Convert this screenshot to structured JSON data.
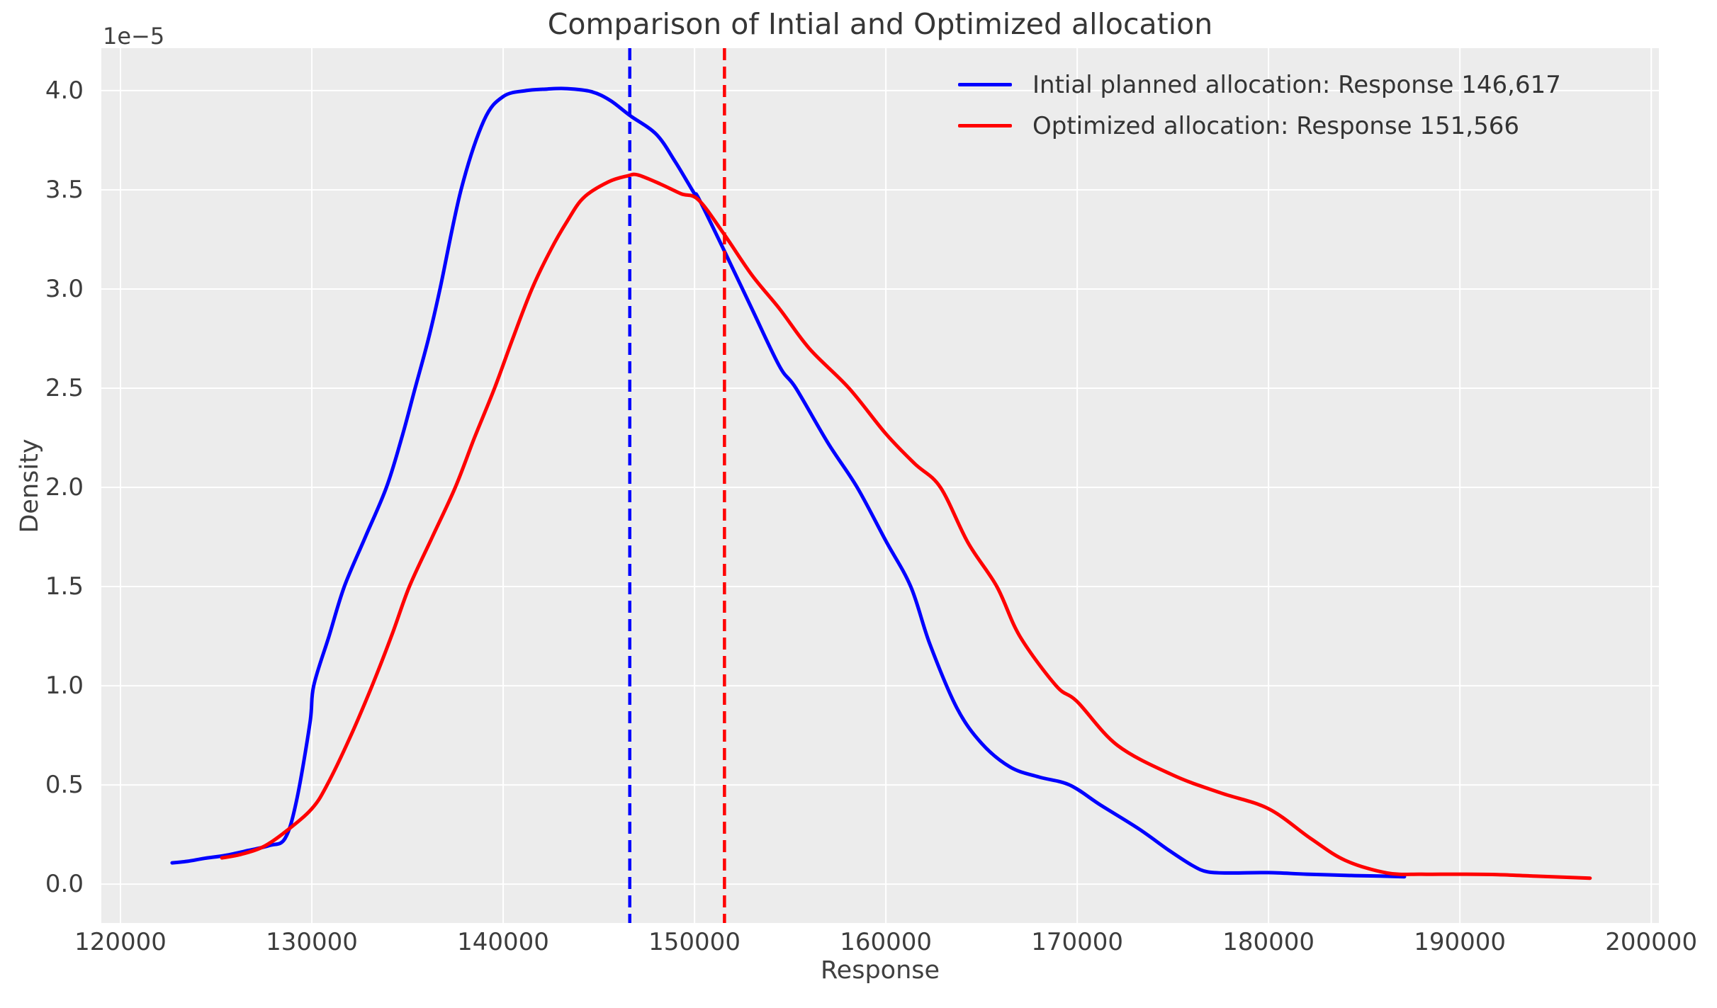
{
  "title": "Comparison of Intial and Optimized allocation",
  "axes": {
    "xlabel": "Response",
    "ylabel": "Density",
    "offset_text": "1e−5",
    "x_tick_labels": [
      "120000",
      "130000",
      "140000",
      "150000",
      "160000",
      "170000",
      "180000",
      "190000",
      "200000"
    ],
    "x_tick_values": [
      120000,
      130000,
      140000,
      150000,
      160000,
      170000,
      180000,
      190000,
      200000
    ],
    "y_tick_labels": [
      "0.0",
      "0.5",
      "1.0",
      "1.5",
      "2.0",
      "2.5",
      "3.0",
      "3.5",
      "4.0"
    ],
    "y_tick_values": [
      0.0,
      0.5,
      1.0,
      1.5,
      2.0,
      2.5,
      3.0,
      3.5,
      4.0
    ],
    "xlim": [
      119000,
      200400
    ],
    "ylim": [
      -0.196,
      4.214
    ],
    "grid": true,
    "background_color": "#ECECEC",
    "grid_color": "#FFFFFF"
  },
  "legend": {
    "position": "upper right",
    "frame": false,
    "entries": [
      {
        "label": "Intial planned allocation: Response 146,617",
        "color": "#0000FF"
      },
      {
        "label": "Optimized allocation: Response 151,566",
        "color": "#FF0000"
      }
    ]
  },
  "chart_data": {
    "type": "line",
    "title": "Comparison of Intial and Optimized allocation",
    "xlabel": "Response",
    "ylabel": "Density",
    "y_scale_factor": "1e-5",
    "xlim": [
      119000,
      200400
    ],
    "ylim_in_1e5_units": [
      -0.196,
      4.214
    ],
    "series": [
      {
        "name": "Intial planned allocation: Response 146,617",
        "color": "#0000FF",
        "style": "solid",
        "points": [
          [
            122700,
            0.107
          ],
          [
            123500,
            0.115
          ],
          [
            124400,
            0.13
          ],
          [
            125500,
            0.145
          ],
          [
            126700,
            0.17
          ],
          [
            127800,
            0.195
          ],
          [
            128600,
            0.23
          ],
          [
            129200,
            0.42
          ],
          [
            129900,
            0.81
          ],
          [
            130100,
            1.0
          ],
          [
            130900,
            1.25
          ],
          [
            131700,
            1.5
          ],
          [
            132800,
            1.75
          ],
          [
            133900,
            2.0
          ],
          [
            134700,
            2.25
          ],
          [
            135400,
            2.5
          ],
          [
            136100,
            2.75
          ],
          [
            136700,
            3.0
          ],
          [
            137800,
            3.5
          ],
          [
            139000,
            3.85
          ],
          [
            140000,
            3.97
          ],
          [
            141200,
            4.0
          ],
          [
            142300,
            4.008
          ],
          [
            143300,
            4.01
          ],
          [
            144600,
            3.995
          ],
          [
            145600,
            3.95
          ],
          [
            146617,
            3.875
          ],
          [
            148000,
            3.78
          ],
          [
            149000,
            3.64
          ],
          [
            150000,
            3.48
          ],
          [
            150200,
            3.46
          ],
          [
            151521,
            3.2
          ],
          [
            153000,
            2.9
          ],
          [
            154444,
            2.61
          ],
          [
            155300,
            2.5
          ],
          [
            157000,
            2.22
          ],
          [
            158500,
            2.0
          ],
          [
            160000,
            1.73
          ],
          [
            161300,
            1.5
          ],
          [
            162300,
            1.21
          ],
          [
            163700,
            0.89
          ],
          [
            165000,
            0.71
          ],
          [
            166500,
            0.59
          ],
          [
            168000,
            0.54
          ],
          [
            169600,
            0.5
          ],
          [
            171200,
            0.4
          ],
          [
            173200,
            0.28
          ],
          [
            174800,
            0.17
          ],
          [
            176000,
            0.095
          ],
          [
            176800,
            0.062
          ],
          [
            178000,
            0.056
          ],
          [
            180000,
            0.058
          ],
          [
            182000,
            0.05
          ],
          [
            184500,
            0.043
          ],
          [
            186000,
            0.04
          ],
          [
            187100,
            0.037
          ]
        ]
      },
      {
        "name": "Optimized allocation: Response 151,566",
        "color": "#FF0000",
        "style": "solid",
        "points": [
          [
            125300,
            0.132
          ],
          [
            126300,
            0.15
          ],
          [
            127500,
            0.19
          ],
          [
            128700,
            0.27
          ],
          [
            130000,
            0.38
          ],
          [
            130800,
            0.5
          ],
          [
            132000,
            0.74
          ],
          [
            133150,
            1.0
          ],
          [
            134200,
            1.26
          ],
          [
            135100,
            1.5
          ],
          [
            136300,
            1.75
          ],
          [
            137500,
            2.0
          ],
          [
            138500,
            2.25
          ],
          [
            139550,
            2.5
          ],
          [
            140500,
            2.75
          ],
          [
            141500,
            3.0
          ],
          [
            142500,
            3.2
          ],
          [
            143335,
            3.34
          ],
          [
            144200,
            3.46
          ],
          [
            145500,
            3.54
          ],
          [
            146500,
            3.57
          ],
          [
            147037,
            3.575
          ],
          [
            148200,
            3.53
          ],
          [
            149300,
            3.48
          ],
          [
            150200,
            3.45
          ],
          [
            151521,
            3.28
          ],
          [
            153000,
            3.07
          ],
          [
            154444,
            2.9
          ],
          [
            156000,
            2.7
          ],
          [
            158074,
            2.5
          ],
          [
            160000,
            2.27
          ],
          [
            161500,
            2.12
          ],
          [
            162852,
            2.0
          ],
          [
            164300,
            1.72
          ],
          [
            165800,
            1.5
          ],
          [
            167000,
            1.25
          ],
          [
            168900,
            1.0
          ],
          [
            170000,
            0.92
          ],
          [
            172100,
            0.7
          ],
          [
            175000,
            0.55
          ],
          [
            177500,
            0.46
          ],
          [
            180000,
            0.38
          ],
          [
            182200,
            0.23
          ],
          [
            184000,
            0.12
          ],
          [
            186200,
            0.056
          ],
          [
            188000,
            0.05
          ],
          [
            190000,
            0.05
          ],
          [
            192000,
            0.048
          ],
          [
            194000,
            0.04
          ],
          [
            196800,
            0.03
          ]
        ]
      }
    ],
    "mean_lines": [
      {
        "name": "initial-mean",
        "x": 146617,
        "color": "#0000FF",
        "style": "dashed"
      },
      {
        "name": "optimized-mean",
        "x": 151566,
        "color": "#FF0000",
        "style": "dashed"
      }
    ]
  }
}
